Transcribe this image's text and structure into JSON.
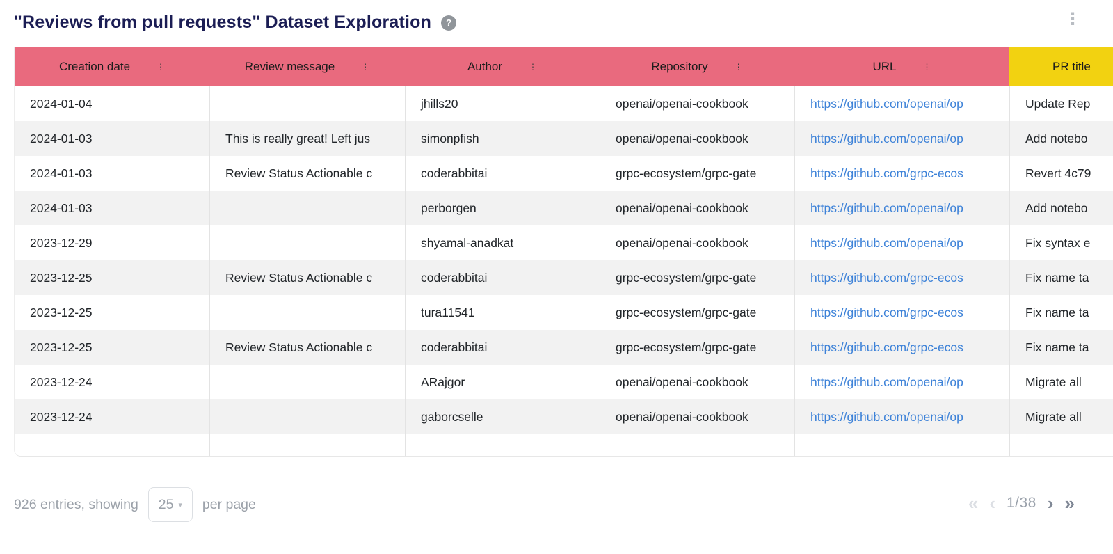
{
  "header": {
    "title": "\"Reviews from pull requests\" Dataset Exploration",
    "icons": {
      "help": "?",
      "kebab_menu": "⋮",
      "column_menu": "⋮",
      "select_caret": "▾",
      "first_page": "«",
      "prev_page": "‹",
      "next_page": "›",
      "last_page": "»"
    }
  },
  "theme": {
    "header_bg": "#e96a7e",
    "header_last_bg": "#f2d211",
    "title_color": "#1b1d54",
    "link_color": "#3d82d8",
    "stripe_bg": "#f2f2f2",
    "footer_text": "#9ba1a9"
  },
  "table": {
    "columns": [
      {
        "label": "Creation date"
      },
      {
        "label": "Review message"
      },
      {
        "label": "Author"
      },
      {
        "label": "Repository"
      },
      {
        "label": "URL"
      },
      {
        "label": "PR title"
      }
    ],
    "rows": [
      {
        "date": "2024-01-04",
        "message": "",
        "author": "jhills20",
        "repo": "openai/openai-cookbook",
        "url": "https://github.com/openai/op",
        "pr": "Update Rep"
      },
      {
        "date": "2024-01-03",
        "message": "This is really great! Left jus",
        "author": "simonpfish",
        "repo": "openai/openai-cookbook",
        "url": "https://github.com/openai/op",
        "pr": "Add notebo"
      },
      {
        "date": "2024-01-03",
        "message": "Review Status Actionable c",
        "author": "coderabbitai",
        "repo": "grpc-ecosystem/grpc-gate",
        "url": "https://github.com/grpc-ecos",
        "pr": "Revert 4c79"
      },
      {
        "date": "2024-01-03",
        "message": "",
        "author": "perborgen",
        "repo": "openai/openai-cookbook",
        "url": "https://github.com/openai/op",
        "pr": "Add notebo"
      },
      {
        "date": "2023-12-29",
        "message": "",
        "author": "shyamal-anadkat",
        "repo": "openai/openai-cookbook",
        "url": "https://github.com/openai/op",
        "pr": "Fix syntax e"
      },
      {
        "date": "2023-12-25",
        "message": "Review Status Actionable c",
        "author": "coderabbitai",
        "repo": "grpc-ecosystem/grpc-gate",
        "url": "https://github.com/grpc-ecos",
        "pr": "Fix name ta"
      },
      {
        "date": "2023-12-25",
        "message": "",
        "author": "tura11541",
        "repo": "grpc-ecosystem/grpc-gate",
        "url": "https://github.com/grpc-ecos",
        "pr": "Fix name ta"
      },
      {
        "date": "2023-12-25",
        "message": "Review Status Actionable c",
        "author": "coderabbitai",
        "repo": "grpc-ecosystem/grpc-gate",
        "url": "https://github.com/grpc-ecos",
        "pr": "Fix name ta"
      },
      {
        "date": "2023-12-24",
        "message": "",
        "author": "ARajgor",
        "repo": "openai/openai-cookbook",
        "url": "https://github.com/openai/op",
        "pr": "Migrate all"
      },
      {
        "date": "2023-12-24",
        "message": "",
        "author": "gaborcselle",
        "repo": "openai/openai-cookbook",
        "url": "https://github.com/openai/op",
        "pr": "Migrate all"
      }
    ]
  },
  "footer": {
    "entries_text": "926 entries, showing",
    "page_size": "25",
    "per_page_label": "per page",
    "page_indicator": "1/38"
  }
}
